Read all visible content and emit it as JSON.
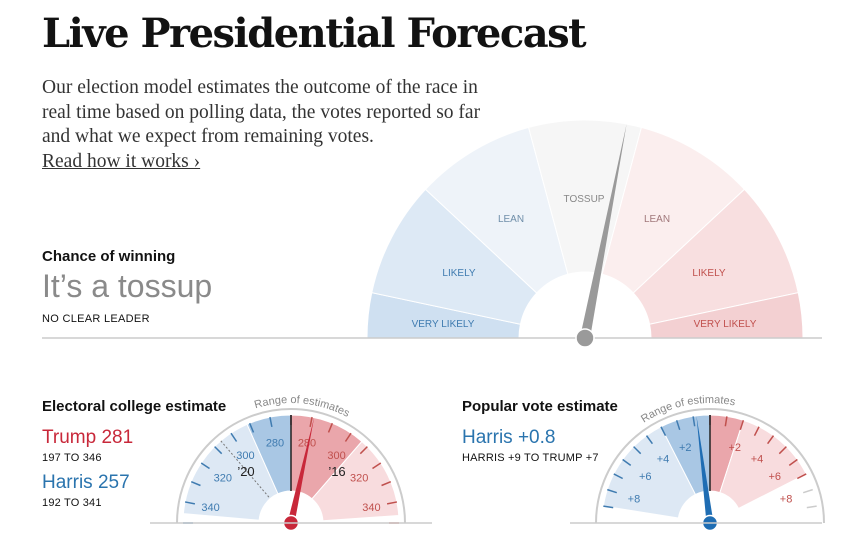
{
  "header": {
    "title": "Live Presidential Forecast",
    "intro": "Our election model estimates the outcome of the race in real time based on polling data, the votes reported so far and what we expect from remaining votes.",
    "read_more": "Read how it works ›"
  },
  "chance": {
    "heading": "Chance of winning",
    "status": "It’s a tossup",
    "substatus": "NO CLEAR LEADER",
    "gauge_labels": [
      "VERY LIKELY",
      "LIKELY",
      "LEAN",
      "TOSSUP",
      "LEAN",
      "LIKELY",
      "VERY LIKELY"
    ]
  },
  "electoral": {
    "heading": "Electoral college estimate",
    "trump_label": "Trump 281",
    "trump_range": "197 TO 346",
    "harris_label": "Harris 257",
    "harris_range": "192 TO 341",
    "range_caption": "Range of estimates",
    "trump_value": 281,
    "marker_2020": "’20",
    "marker_2016": "’16",
    "tick_labels": [
      "280",
      "300",
      "320",
      "340"
    ]
  },
  "popular": {
    "heading": "Popular vote estimate",
    "leader_label": "Harris +0.8",
    "range": "HARRIS +9 TO TRUMP +7",
    "range_caption": "Range of estimates",
    "harris_margin": 0.8,
    "tick_labels": [
      "+2",
      "+4",
      "+6",
      "+8"
    ]
  },
  "colors": {
    "red": "#c8283a",
    "blue": "#1f6db3",
    "needle_gray": "#9a9a9a"
  }
}
